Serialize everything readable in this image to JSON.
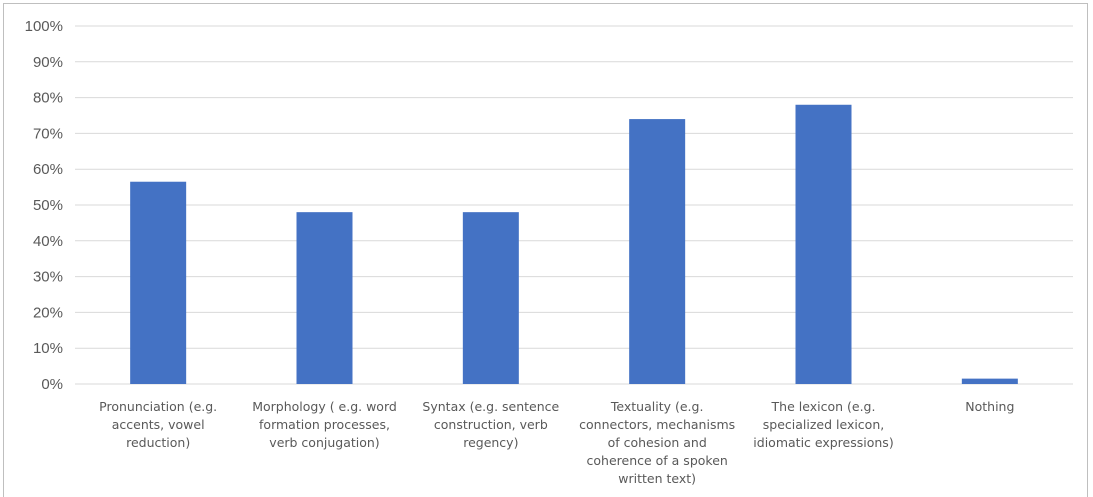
{
  "chart_data": {
    "type": "bar",
    "title": "",
    "xlabel": "",
    "ylabel": "",
    "ylim": [
      0,
      100
    ],
    "grid": true,
    "y_ticks": [
      "0%",
      "10%",
      "20%",
      "30%",
      "40%",
      "50%",
      "60%",
      "70%",
      "80%",
      "90%",
      "100%"
    ],
    "categories": [
      [
        "Pronunciation (e.g.",
        "accents, vowel",
        "reduction)"
      ],
      [
        "Morphology ( e.g. word",
        "formation processes,",
        "verb conjugation)"
      ],
      [
        "Syntax (e.g. sentence",
        "construction, verb",
        "regency)"
      ],
      [
        "Textuality (e.g.",
        "connectors, mechanisms",
        "of cohesion and",
        "coherence of a spoken",
        "written text)"
      ],
      [
        "The lexicon (e.g.",
        "specialized lexicon,",
        "idiomatic expressions)"
      ],
      [
        "Nothing"
      ]
    ],
    "values": [
      56.5,
      48,
      48,
      74,
      78,
      1.5
    ],
    "colors": {
      "bar": "#4472c4",
      "grid": "#d9d9d9",
      "text": "#595959"
    }
  }
}
